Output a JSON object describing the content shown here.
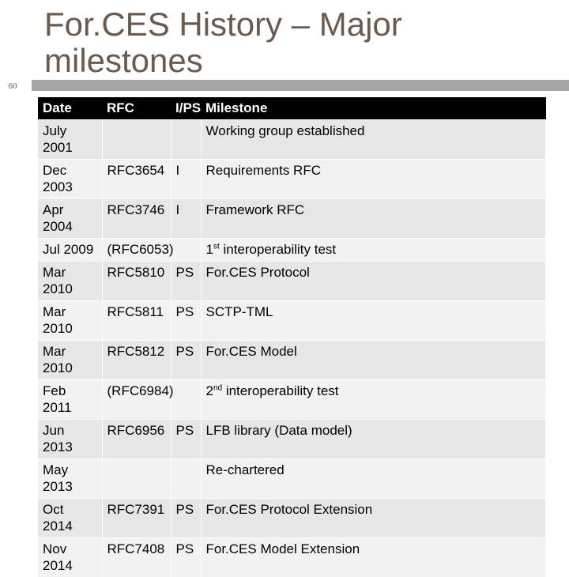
{
  "slide": {
    "title": "For.CES History – Major milestones",
    "page_number": "60"
  },
  "table": {
    "headers": {
      "date": "Date",
      "rfc": "RFC",
      "ips": "I/PS",
      "milestone": "Milestone"
    },
    "rows": [
      {
        "date": "July 2001",
        "rfc": "",
        "ips": "",
        "milestone": "Working group established",
        "milestone_sup": ""
      },
      {
        "date": "Dec 2003",
        "rfc": "RFC3654",
        "ips": "I",
        "milestone": "Requirements RFC",
        "milestone_sup": ""
      },
      {
        "date": "Apr 2004",
        "rfc": "RFC3746",
        "ips": "I",
        "milestone": "Framework RFC",
        "milestone_sup": ""
      },
      {
        "date": "Jul 2009",
        "rfc": "(RFC6053)",
        "ips": "",
        "milestone": " interoperability test",
        "milestone_num": "1",
        "milestone_sup": "st"
      },
      {
        "date": "Mar 2010",
        "rfc": "RFC5810",
        "ips": "PS",
        "milestone": "For.CES Protocol",
        "milestone_sup": ""
      },
      {
        "date": "Mar 2010",
        "rfc": "RFC5811",
        "ips": "PS",
        "milestone": "SCTP-TML",
        "milestone_sup": ""
      },
      {
        "date": "Mar 2010",
        "rfc": "RFC5812",
        "ips": "PS",
        "milestone": "For.CES Model",
        "milestone_sup": ""
      },
      {
        "date": "Feb 2011",
        "rfc": "(RFC6984)",
        "ips": "",
        "milestone": " interoperability test",
        "milestone_num": "2",
        "milestone_sup": "nd"
      },
      {
        "date": "Jun 2013",
        "rfc": "RFC6956",
        "ips": "PS",
        "milestone": "LFB library (Data model)",
        "milestone_sup": ""
      },
      {
        "date": "May 2013",
        "rfc": "",
        "ips": "",
        "milestone": "Re-chartered",
        "milestone_sup": ""
      },
      {
        "date": "Oct 2014",
        "rfc": "RFC7391",
        "ips": "PS",
        "milestone": "For.CES Protocol Extension",
        "milestone_sup": ""
      },
      {
        "date": "Nov 2014",
        "rfc": "RFC7408",
        "ips": "PS",
        "milestone": "For.CES Model Extension",
        "milestone_sup": ""
      }
    ]
  }
}
